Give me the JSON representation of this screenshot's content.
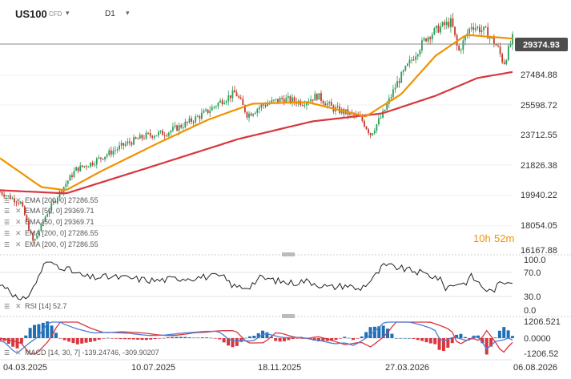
{
  "toolbar": {
    "symbol": "US100",
    "symbol_type": "CFD",
    "timeframe": "D1",
    "dropdown_glyph": "▾"
  },
  "price_axis": {
    "labels": [
      "27484.88",
      "25598.72",
      "23712.55",
      "21826.38",
      "19940.22",
      "18054.05",
      "16167.88"
    ],
    "current_price": "29374.93",
    "current_price_bg": "#4d4d4d"
  },
  "countdown": {
    "hours": "10h",
    "minutes": "52m",
    "color": "#f39200"
  },
  "indicators": [
    {
      "label": "EMA [200, 0] 27286.55"
    },
    {
      "label": "EMA [50, 0] 29369.71"
    },
    {
      "label": "EMA [50, 0] 29369.71"
    },
    {
      "label": "EMA [200, 0] 27286.55"
    },
    {
      "label": "EMA [200, 0] 27286.55"
    }
  ],
  "rsi": {
    "label": "RSI [14] 52.7",
    "axis_labels": [
      "100.0",
      "70.0",
      "30.0",
      "0.0"
    ]
  },
  "macd": {
    "label": "MACD [14, 30, 7] -139.24746, -309.90207",
    "axis_labels": [
      "1206.521",
      "0.0000",
      "-1206.52"
    ]
  },
  "date_axis": [
    "04.03.2025",
    "10.07.2025",
    "18.11.2025",
    "27.03.2026",
    "06.08.2026"
  ],
  "colors": {
    "ema50": "#f39200",
    "ema200": "#d9363e",
    "candle_up": "#2a9d5a",
    "candle_down": "#c0392b",
    "macd_line": "#4a7fd6",
    "signal_line": "#d9363e",
    "hist_pos": "#1f6fb5",
    "hist_neg": "#d9363e"
  },
  "chart_data": {
    "type": "candlestick",
    "x_range": [
      "2025-03-04",
      "2026-08-06"
    ],
    "ylim": [
      16167.88,
      30500
    ],
    "price_points": [
      [
        "2025-03-04",
        19800
      ],
      [
        "2025-03-25",
        19100
      ],
      [
        "2025-04-07",
        16600
      ],
      [
        "2025-04-20",
        18400
      ],
      [
        "2025-05-05",
        19900
      ],
      [
        "2025-05-20",
        21200
      ],
      [
        "2025-06-05",
        21600
      ],
      [
        "2025-06-25",
        22300
      ],
      [
        "2025-07-10",
        22800
      ],
      [
        "2025-07-30",
        23300
      ],
      [
        "2025-08-20",
        23500
      ],
      [
        "2025-09-10",
        24100
      ],
      [
        "2025-09-30",
        24800
      ],
      [
        "2025-10-15",
        25500
      ],
      [
        "2025-10-29",
        26000
      ],
      [
        "2025-11-10",
        24600
      ],
      [
        "2025-11-25",
        25200
      ],
      [
        "2025-12-15",
        25600
      ],
      [
        "2026-01-05",
        25400
      ],
      [
        "2026-01-20",
        25800
      ],
      [
        "2026-02-05",
        25000
      ],
      [
        "2026-02-20",
        24700
      ],
      [
        "2026-03-05",
        24400
      ],
      [
        "2026-03-15",
        23400
      ],
      [
        "2026-03-27",
        24600
      ],
      [
        "2026-04-10",
        26500
      ],
      [
        "2026-04-25",
        28000
      ],
      [
        "2026-05-10",
        29400
      ],
      [
        "2026-05-25",
        30100
      ],
      [
        "2026-06-05",
        30400
      ],
      [
        "2026-06-12",
        28500
      ],
      [
        "2026-06-25",
        30200
      ],
      [
        "2026-07-10",
        29800
      ],
      [
        "2026-07-22",
        28800
      ],
      [
        "2026-07-28",
        27800
      ],
      [
        "2026-08-06",
        29375
      ]
    ],
    "ema50_points": [
      [
        "2025-03-04",
        21900
      ],
      [
        "2025-04-15",
        20100
      ],
      [
        "2025-05-10",
        19900
      ],
      [
        "2025-06-15",
        21100
      ],
      [
        "2025-08-10",
        22800
      ],
      [
        "2025-10-01",
        24300
      ],
      [
        "2025-11-15",
        25300
      ],
      [
        "2026-01-10",
        25400
      ],
      [
        "2026-03-10",
        24500
      ],
      [
        "2026-04-15",
        25900
      ],
      [
        "2026-05-20",
        28300
      ],
      [
        "2026-06-20",
        29600
      ],
      [
        "2026-08-06",
        29369.71
      ]
    ],
    "ema200_points": [
      [
        "2025-03-04",
        19900
      ],
      [
        "2025-05-10",
        19700
      ],
      [
        "2025-08-01",
        21300
      ],
      [
        "2025-11-01",
        23100
      ],
      [
        "2026-01-15",
        24200
      ],
      [
        "2026-03-27",
        24700
      ],
      [
        "2026-05-20",
        25800
      ],
      [
        "2026-07-01",
        26900
      ],
      [
        "2026-08-06",
        27286.55
      ]
    ],
    "rsi_range": [
      0,
      100
    ],
    "rsi_last": 52.7,
    "macd_range": [
      -1206.52,
      1206.521
    ],
    "macd_last": -139.24746,
    "signal_last": -309.90207
  }
}
